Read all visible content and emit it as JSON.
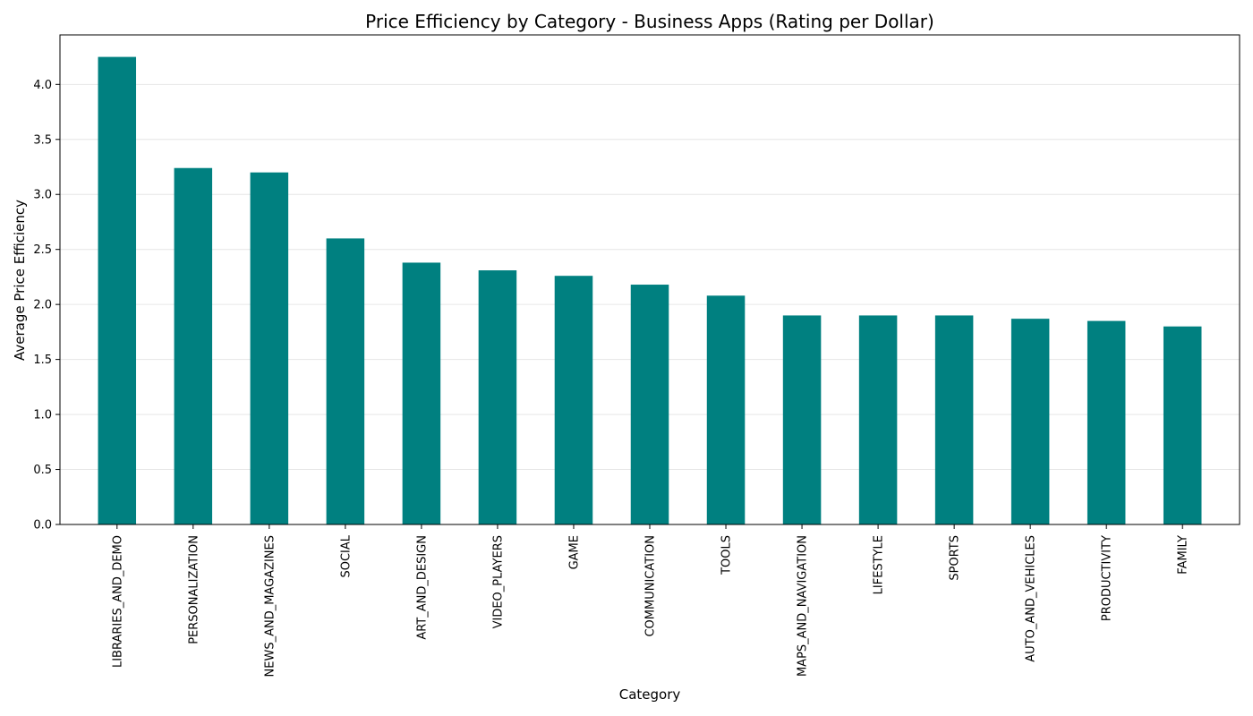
{
  "chart_data": {
    "type": "bar",
    "title": "Price Efficiency by Category - Business Apps (Rating per Dollar)",
    "xlabel": "Category",
    "ylabel": "Average Price Efficiency",
    "categories": [
      "LIBRARIES_AND_DEMO",
      "PERSONALIZATION",
      "NEWS_AND_MAGAZINES",
      "SOCIAL",
      "ART_AND_DESIGN",
      "VIDEO_PLAYERS",
      "GAME",
      "COMMUNICATION",
      "TOOLS",
      "MAPS_AND_NAVIGATION",
      "LIFESTYLE",
      "SPORTS",
      "AUTO_AND_VEHICLES",
      "PRODUCTIVITY",
      "FAMILY"
    ],
    "values": [
      4.25,
      3.24,
      3.2,
      2.6,
      2.38,
      2.31,
      2.26,
      2.18,
      2.08,
      1.9,
      1.9,
      1.9,
      1.87,
      1.85,
      1.8
    ],
    "yticks": [
      "0.0",
      "0.5",
      "1.0",
      "1.5",
      "2.0",
      "2.5",
      "3.0",
      "3.5",
      "4.0"
    ],
    "ylim": [
      0,
      4.45
    ],
    "grid": "y",
    "bar_color": "#008080"
  }
}
